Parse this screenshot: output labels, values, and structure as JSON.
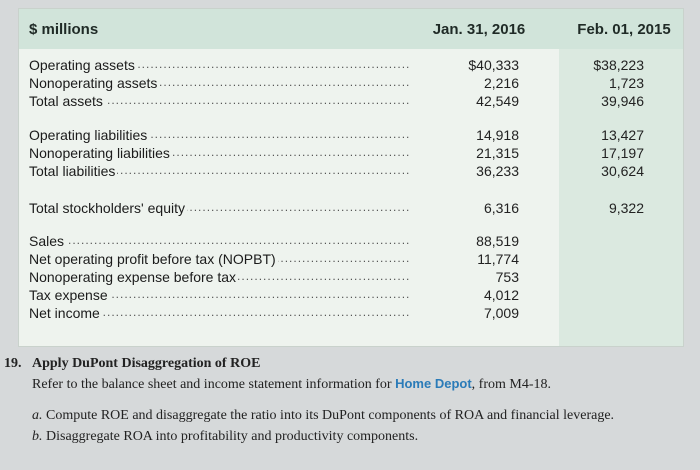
{
  "table": {
    "unit_label": "$ millions",
    "col1_header": "Jan. 31, 2016",
    "col2_header": "Feb. 01, 2015",
    "rows": [
      {
        "label": "Operating assets",
        "v1": "$40,333",
        "v2": "$38,223"
      },
      {
        "label": "Nonoperating assets",
        "v1": "2,216",
        "v2": "1,723"
      },
      {
        "label": "Total assets",
        "v1": "42,549",
        "v2": "39,946"
      },
      {
        "label": "Operating liabilities",
        "v1": "14,918",
        "v2": "13,427"
      },
      {
        "label": "Nonoperating liabilities",
        "v1": "21,315",
        "v2": "17,197"
      },
      {
        "label": "Total liabilities",
        "v1": "36,233",
        "v2": "30,624"
      },
      {
        "label": "Total stockholders' equity",
        "v1": "6,316",
        "v2": "9,322"
      },
      {
        "label": "Sales",
        "v1": "88,519",
        "v2": ""
      },
      {
        "label": "Net operating profit before tax (NOPBT)",
        "v1": "11,774",
        "v2": ""
      },
      {
        "label": "Nonoperating expense before tax",
        "v1": "753",
        "v2": ""
      },
      {
        "label": "Tax expense",
        "v1": "4,012",
        "v2": ""
      },
      {
        "label": "Net income",
        "v1": "7,009",
        "v2": ""
      }
    ]
  },
  "question": {
    "number": "19.",
    "title": "Apply DuPont Disaggregation of ROE",
    "intro_before": "Refer to the balance sheet and income statement information for ",
    "company": "Home Depot",
    "intro_after": ", from M4-18.",
    "part_a_letter": "a.",
    "part_a": "Compute ROE and disaggregate the ratio into its DuPont components of ROA and financial leverage.",
    "part_b_letter": "b.",
    "part_b": "Disaggregate ROA into profitability and productivity components."
  }
}
